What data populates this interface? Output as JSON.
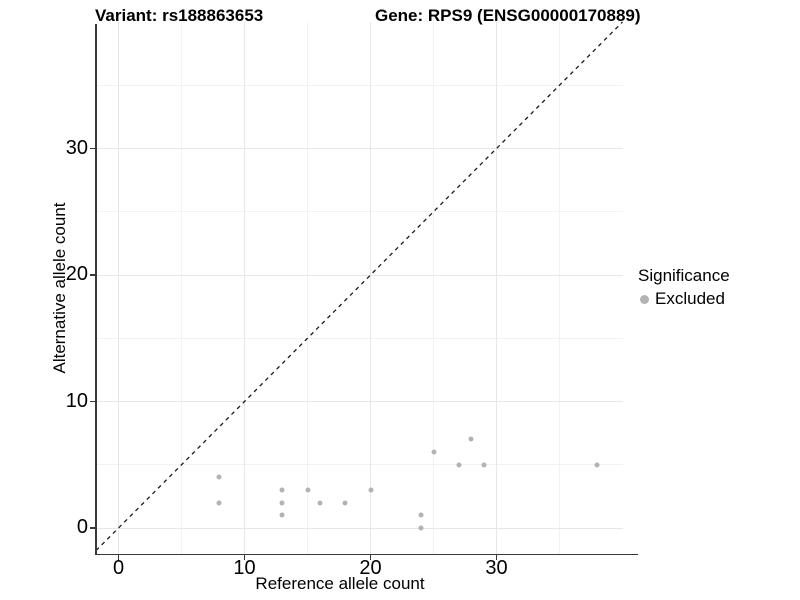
{
  "header": {
    "title_left": "Variant: rs188863653",
    "title_right": "Gene: RPS9 (ENSG00000170889)"
  },
  "axes": {
    "x_label": "Reference allele count",
    "y_label": "Alternative allele count",
    "x_ticks": [
      0,
      10,
      20,
      30
    ],
    "y_ticks": [
      0,
      10,
      20,
      30
    ],
    "minor_gridlines": [
      5,
      15,
      25,
      35
    ]
  },
  "legend": {
    "title": "Significance",
    "items": [
      {
        "label": "Excluded",
        "color": "#b3b3b3"
      }
    ]
  },
  "colors": {
    "point": "#b3b3b3",
    "axis_line": "#383838",
    "grid_major": "#e7e7e7",
    "grid_minor": "#f2f2f2",
    "reference_line": "#1a1a1a"
  },
  "chart_data": {
    "type": "scatter",
    "title": "Variant: rs188863653   Gene: RPS9 (ENSG00000170889)",
    "xlabel": "Reference allele count",
    "ylabel": "Alternative allele count",
    "xlim": [
      -1.9,
      40.3
    ],
    "ylim": [
      -2.1,
      40.0
    ],
    "grid": "lines every 5 units, light gray, white background",
    "legend_position": "right-middle",
    "series": [
      {
        "name": "Excluded",
        "color": "#b3b3b3",
        "points": [
          [
            8,
            4
          ],
          [
            8,
            2
          ],
          [
            13,
            3
          ],
          [
            13,
            2
          ],
          [
            13,
            1
          ],
          [
            15,
            3
          ],
          [
            16,
            2
          ],
          [
            18,
            2
          ],
          [
            20,
            3
          ],
          [
            24,
            1
          ],
          [
            24,
            0
          ],
          [
            25,
            6
          ],
          [
            27,
            5
          ],
          [
            28,
            7
          ],
          [
            29,
            5
          ],
          [
            38,
            5
          ]
        ]
      }
    ],
    "reference_line": {
      "type": "identity y=x",
      "style": "dashed",
      "color": "#1a1a1a"
    }
  }
}
